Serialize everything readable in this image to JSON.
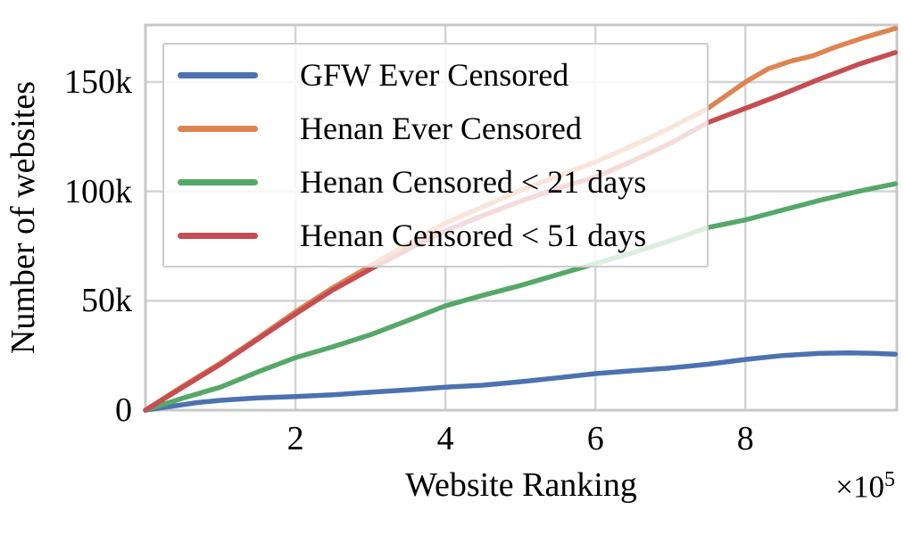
{
  "chart_data": {
    "type": "line",
    "xlabel": "Website Ranking",
    "ylabel": "Number of websites",
    "x_offset": {
      "base": "×10",
      "exp": "5"
    },
    "xlim": [
      0,
      1002000
    ],
    "ylim": [
      0,
      176100
    ],
    "grid": true,
    "legend_position": "upper-left",
    "xticks": [
      {
        "value": 200000,
        "label": "2"
      },
      {
        "value": 400000,
        "label": "4"
      },
      {
        "value": 600000,
        "label": "6"
      },
      {
        "value": 800000,
        "label": "8"
      }
    ],
    "yticks": [
      {
        "value": 0,
        "label": "0"
      },
      {
        "value": 50000,
        "label": "50k"
      },
      {
        "value": 100000,
        "label": "100k"
      },
      {
        "value": 150000,
        "label": "150k"
      }
    ],
    "series": [
      {
        "id": "gfw-ever-censored",
        "name": "GFW Ever Censored",
        "color": "#4C72B0",
        "x": [
          0,
          30000,
          70000,
          100000,
          150000,
          200000,
          250000,
          300000,
          350000,
          400000,
          450000,
          500000,
          550000,
          600000,
          650000,
          700000,
          750000,
          800000,
          850000,
          900000,
          940000,
          970000,
          1000000
        ],
        "y": [
          0,
          1500,
          3500,
          4500,
          5600,
          6200,
          7000,
          8200,
          9300,
          10500,
          11400,
          13000,
          14800,
          16700,
          18000,
          19300,
          21000,
          23200,
          25000,
          26000,
          26200,
          26000,
          25600
        ]
      },
      {
        "id": "henan-ever-censored",
        "name": "Henan Ever Censored",
        "color": "#DD8452",
        "x": [
          0,
          50000,
          100000,
          150000,
          200000,
          250000,
          300000,
          350000,
          400000,
          450000,
          500000,
          550000,
          600000,
          650000,
          700000,
          750000,
          800000,
          830000,
          860000,
          890000,
          920000,
          960000,
          1000000
        ],
        "y": [
          0,
          11000,
          21500,
          33000,
          45000,
          56000,
          66000,
          76000,
          85500,
          93000,
          100500,
          107000,
          113500,
          121000,
          129000,
          138000,
          150000,
          156000,
          159500,
          162000,
          166000,
          170500,
          174500
        ]
      },
      {
        "id": "henan-censored-lt-21-days",
        "name": "Henan Censored < 21 days",
        "color": "#55A868",
        "x": [
          0,
          50000,
          100000,
          150000,
          200000,
          250000,
          300000,
          350000,
          400000,
          450000,
          500000,
          550000,
          600000,
          650000,
          700000,
          750000,
          800000,
          850000,
          900000,
          950000,
          1000000
        ],
        "y": [
          0,
          5500,
          10500,
          17500,
          24000,
          29000,
          34500,
          41000,
          47700,
          52500,
          57000,
          62000,
          67000,
          72000,
          77500,
          83500,
          87000,
          91500,
          96000,
          100000,
          103500
        ]
      },
      {
        "id": "henan-censored-lt-51-days",
        "name": "Henan Censored < 51 days",
        "color": "#C44E52",
        "x": [
          0,
          50000,
          100000,
          150000,
          200000,
          250000,
          300000,
          350000,
          400000,
          450000,
          500000,
          550000,
          600000,
          650000,
          700000,
          750000,
          800000,
          850000,
          900000,
          950000,
          1000000
        ],
        "y": [
          0,
          10500,
          21000,
          32500,
          44000,
          55000,
          64500,
          73500,
          82000,
          89000,
          95500,
          101500,
          106500,
          114000,
          122000,
          131500,
          138000,
          144500,
          151500,
          158000,
          163500
        ]
      }
    ]
  }
}
